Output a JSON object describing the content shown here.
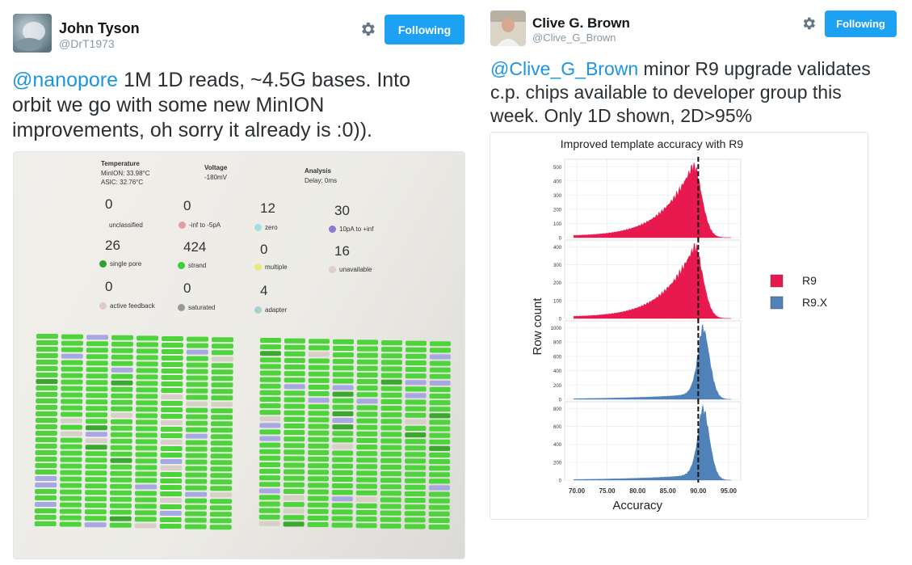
{
  "tweet1": {
    "name": "John Tyson",
    "handle": "@DrT1973",
    "follow_label": "Following",
    "gear_icon": "gear-icon",
    "mention": "@nanopore",
    "text_line1": " 1M 1D reads, ~4.5G bases. Into",
    "text_line2": "orbit we go with some new MinION",
    "text_line3": "improvements, oh sorry it already is :0)).",
    "screen": {
      "temperature_title": "Temperature",
      "minion_temp": "MinION: 33.98°C",
      "asic_temp": "ASIC: 32.76°C",
      "voltage_title": "Voltage",
      "voltage_value": "-180mV",
      "analysis_title": "Analysis",
      "analysis_delay": "Delay: 0ms",
      "stats": [
        {
          "value": "0",
          "label": "unclassified",
          "color": ""
        },
        {
          "value": "0",
          "label": "-inf to -5pA",
          "color": "#e0a0a0"
        },
        {
          "value": "12",
          "label": "zero",
          "color": "#9fe0e0"
        },
        {
          "value": "30",
          "label": "10pA to +inf",
          "color": "#8a7ad0"
        },
        {
          "value": "26",
          "label": "single pore",
          "color": "#2fa02f"
        },
        {
          "value": "424",
          "label": "strand",
          "color": "#3bd03b"
        },
        {
          "value": "0",
          "label": "multiple",
          "color": "#e9e980"
        },
        {
          "value": "16",
          "label": "unavailable",
          "color": "#dcd0c8"
        },
        {
          "value": "0",
          "label": "active feedback",
          "color": "#e0c8c8"
        },
        {
          "value": "0",
          "label": "saturated",
          "color": "#9a9a9a"
        },
        {
          "value": "4",
          "label": "adapter",
          "color": "#a8d0d0"
        }
      ]
    }
  },
  "tweet2": {
    "name": "Clive G. Brown",
    "handle": "@Clive_G_Brown",
    "follow_label": "Following",
    "gear_icon": "gear-icon",
    "mention": "@Clive_G_Brown",
    "text_line1": " minor R9 upgrade validates",
    "text_line2": "c.p. chips available to developer group this",
    "text_line3": "week. Only 1D shown, 2D>95%"
  },
  "chart_data": {
    "type": "area",
    "title": "Improved  template accuracy with R9",
    "xlabel": "Accuracy",
    "ylabel": "Row count",
    "x_ticks": [
      "70.00",
      "75.00",
      "80.00",
      "85.00",
      "90.00",
      "95.00"
    ],
    "xlim": [
      68,
      97
    ],
    "reference_line_x": 90.0,
    "legend": [
      {
        "name": "R9",
        "color": "#e8194f"
      },
      {
        "name": "R9.X",
        "color": "#4f82b8"
      }
    ],
    "panels": [
      {
        "series": "R9",
        "y_ticks": [
          "500",
          "400",
          "300",
          "200",
          "100",
          "0"
        ],
        "ylim": [
          0,
          530
        ],
        "peak_x": 89.3,
        "peak_y": 510
      },
      {
        "series": "R9",
        "y_ticks": [
          "400",
          "300",
          "200",
          "100",
          "0"
        ],
        "ylim": [
          0,
          420
        ],
        "peak_x": 89.5,
        "peak_y": 400
      },
      {
        "series": "R9.X",
        "y_ticks": [
          "1000",
          "800",
          "600",
          "400",
          "200",
          "0"
        ],
        "ylim": [
          0,
          1050
        ],
        "peak_x": 90.8,
        "peak_y": 990
      },
      {
        "series": "R9.X",
        "y_ticks": [
          "800",
          "600",
          "400",
          "200",
          "0"
        ],
        "ylim": [
          0,
          840
        ],
        "peak_x": 90.8,
        "peak_y": 800
      }
    ]
  }
}
